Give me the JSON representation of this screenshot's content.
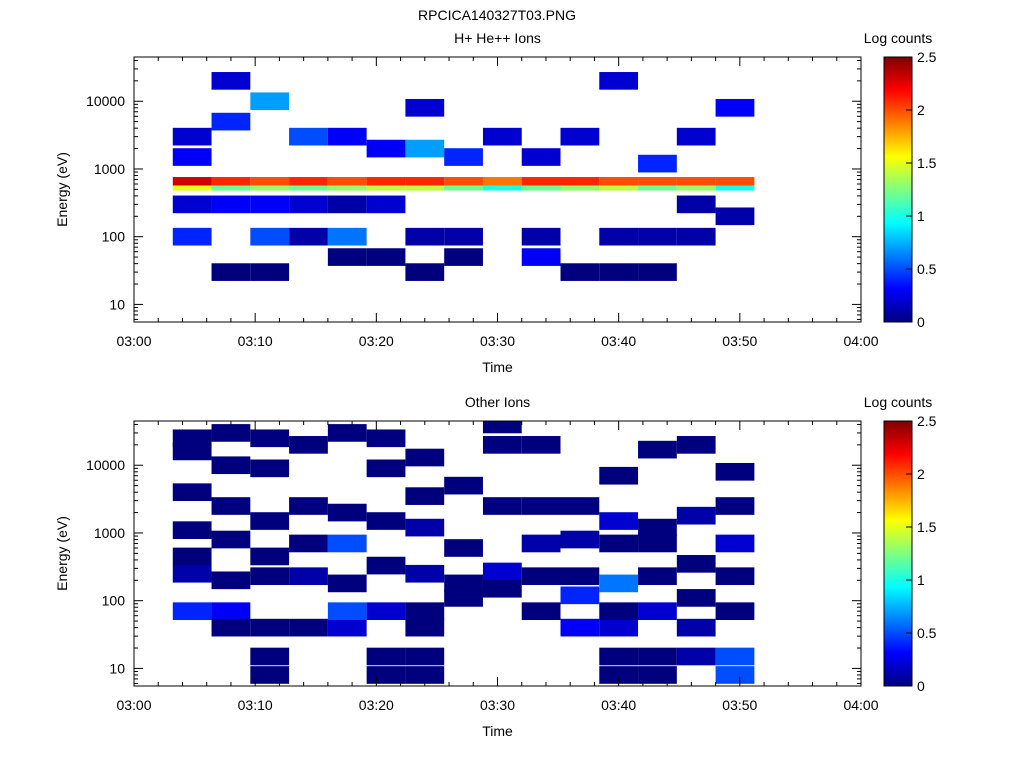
{
  "page_title": "RPCICA140327T03.PNG",
  "chart_data": [
    {
      "type": "heatmap",
      "title": "H+ He++ Ions",
      "xlabel": "Time",
      "ylabel": "Energy (eV)",
      "colorbar_label": "Log counts",
      "x_ticks": [
        "03:00",
        "03:10",
        "03:20",
        "03:30",
        "03:40",
        "03:50",
        "04:00"
      ],
      "y_ticks": [
        "10",
        "100",
        "1000",
        "10000"
      ],
      "colorbar_ticks": [
        "0",
        "0.5",
        "1",
        "1.5",
        "2",
        "2.5"
      ],
      "xlim_minutes": [
        0,
        60
      ],
      "ylim_eV": [
        5.5,
        45000
      ],
      "y_scale": "log",
      "zlim": [
        0,
        2.5
      ],
      "colormap": [
        "#00007f",
        "#0000ff",
        "#007fff",
        "#00ffff",
        "#7fff7f",
        "#ffff00",
        "#ff7f00",
        "#ff0000",
        "#7f0000"
      ],
      "time_bins_start_minutes": [
        3.2,
        6.4,
        9.6,
        12.8,
        16.0,
        19.2,
        22.4,
        25.6,
        28.8,
        32.0,
        35.2,
        38.4,
        41.6,
        44.8,
        48.0
      ],
      "time_bin_width_minutes": 3.2,
      "bands": [
        {
          "e_low": 570,
          "e_high": 760,
          "values": [
            2.3,
            2.1,
            2.0,
            2.1,
            2.0,
            2.1,
            2.1,
            2.0,
            1.9,
            2.1,
            2.1,
            2.0,
            2.0,
            2.0,
            2.0
          ]
        },
        {
          "e_low": 480,
          "e_high": 570,
          "values": [
            1.5,
            1.2,
            1.3,
            1.2,
            1.3,
            1.4,
            1.4,
            1.2,
            1.0,
            1.2,
            1.3,
            1.4,
            1.2,
            1.3,
            1.0
          ]
        }
      ],
      "cells": [
        [
          0,
          100,
          0.4
        ],
        [
          0,
          300,
          0.2
        ],
        [
          0,
          1500,
          0.3
        ],
        [
          0,
          3000,
          0.2
        ],
        [
          1,
          30,
          0.0
        ],
        [
          1,
          300,
          0.3
        ],
        [
          1,
          5000,
          0.4
        ],
        [
          1,
          20000,
          0.2
        ],
        [
          2,
          100,
          0.5
        ],
        [
          2,
          300,
          0.3
        ],
        [
          2,
          10000,
          0.7
        ],
        [
          2,
          30,
          0.0
        ],
        [
          3,
          100,
          0.1
        ],
        [
          3,
          300,
          0.2
        ],
        [
          3,
          3000,
          0.5
        ],
        [
          4,
          100,
          0.6
        ],
        [
          4,
          300,
          0.1
        ],
        [
          4,
          50,
          0.0
        ],
        [
          4,
          3000,
          0.3
        ],
        [
          5,
          50,
          0.0
        ],
        [
          5,
          300,
          0.2
        ],
        [
          5,
          2000,
          0.3
        ],
        [
          6,
          30,
          0.0
        ],
        [
          6,
          100,
          0.1
        ],
        [
          6,
          2000,
          0.7
        ],
        [
          6,
          8000,
          0.2
        ],
        [
          7,
          50,
          0.0
        ],
        [
          7,
          100,
          0.1
        ],
        [
          7,
          1500,
          0.4
        ],
        [
          8,
          3000,
          0.2
        ],
        [
          9,
          50,
          0.3
        ],
        [
          9,
          100,
          0.1
        ],
        [
          9,
          1500,
          0.2
        ],
        [
          10,
          30,
          0.0
        ],
        [
          10,
          3000,
          0.2
        ],
        [
          11,
          30,
          0.0
        ],
        [
          11,
          100,
          0.1
        ],
        [
          11,
          20000,
          0.2
        ],
        [
          12,
          30,
          0.0
        ],
        [
          12,
          100,
          0.1
        ],
        [
          12,
          1200,
          0.4
        ],
        [
          13,
          100,
          0.1
        ],
        [
          13,
          300,
          0.1
        ],
        [
          13,
          3000,
          0.2
        ],
        [
          14,
          200,
          0.1
        ],
        [
          14,
          8000,
          0.3
        ]
      ]
    },
    {
      "type": "heatmap",
      "title": "Other Ions",
      "xlabel": "Time",
      "ylabel": "Energy (eV)",
      "colorbar_label": "Log counts",
      "x_ticks": [
        "03:00",
        "03:10",
        "03:20",
        "03:30",
        "03:40",
        "03:50",
        "04:00"
      ],
      "y_ticks": [
        "10",
        "100",
        "1000",
        "10000"
      ],
      "colorbar_ticks": [
        "0",
        "0.5",
        "1",
        "1.5",
        "2",
        "2.5"
      ],
      "xlim_minutes": [
        0,
        60
      ],
      "ylim_eV": [
        5.5,
        45000
      ],
      "y_scale": "log",
      "zlim": [
        0,
        2.5
      ],
      "colormap": [
        "#00007f",
        "#0000ff",
        "#007fff",
        "#00ffff",
        "#7fff7f",
        "#ffff00",
        "#ff7f00",
        "#ff0000",
        "#7f0000"
      ],
      "time_bins_start_minutes": [
        3.2,
        6.4,
        9.6,
        12.8,
        16.0,
        19.2,
        22.4,
        25.6,
        28.8,
        32.0,
        35.2,
        38.4,
        41.6,
        44.8,
        48.0
      ],
      "time_bin_width_minutes": 3.2,
      "bands": [],
      "cells": [
        [
          0,
          70,
          0.4
        ],
        [
          0,
          250,
          0.1
        ],
        [
          0,
          450,
          0.0
        ],
        [
          0,
          1100,
          0.0
        ],
        [
          0,
          4000,
          0.0
        ],
        [
          0,
          16000,
          0.0
        ],
        [
          0,
          25000,
          0.0
        ],
        [
          1,
          70,
          0.3
        ],
        [
          1,
          40,
          0.0
        ],
        [
          1,
          200,
          0.0
        ],
        [
          1,
          800,
          0.0
        ],
        [
          1,
          2500,
          0.0
        ],
        [
          1,
          10000,
          0.0
        ],
        [
          1,
          30000,
          0.0
        ],
        [
          2,
          40,
          0.0
        ],
        [
          2,
          15,
          0.0
        ],
        [
          2,
          8,
          0.0
        ],
        [
          2,
          230,
          0.0
        ],
        [
          2,
          450,
          0.0
        ],
        [
          2,
          1500,
          0.0
        ],
        [
          2,
          9000,
          0.0
        ],
        [
          2,
          25000,
          0.0
        ],
        [
          3,
          40,
          0.0
        ],
        [
          3,
          230,
          0.1
        ],
        [
          3,
          700,
          0.0
        ],
        [
          3,
          2500,
          0.0
        ],
        [
          3,
          20000,
          0.0
        ],
        [
          4,
          40,
          0.2
        ],
        [
          4,
          70,
          0.5
        ],
        [
          4,
          180,
          0.0
        ],
        [
          4,
          700,
          0.5
        ],
        [
          4,
          2000,
          0.0
        ],
        [
          4,
          30000,
          0.0
        ],
        [
          5,
          15,
          0.0
        ],
        [
          5,
          8,
          0.0
        ],
        [
          5,
          70,
          0.2
        ],
        [
          5,
          330,
          0.0
        ],
        [
          5,
          1500,
          0.0
        ],
        [
          5,
          9000,
          0.0
        ],
        [
          5,
          25000,
          0.0
        ],
        [
          6,
          15,
          0.0
        ],
        [
          6,
          8,
          0.0
        ],
        [
          6,
          40,
          0.0
        ],
        [
          6,
          70,
          0.0
        ],
        [
          6,
          250,
          0.1
        ],
        [
          6,
          1200,
          0.1
        ],
        [
          6,
          3500,
          0.0
        ],
        [
          6,
          13000,
          0.0
        ],
        [
          7,
          180,
          0.0
        ],
        [
          7,
          110,
          0.0
        ],
        [
          7,
          600,
          0.0
        ],
        [
          7,
          5000,
          0.0
        ],
        [
          8,
          270,
          0.2
        ],
        [
          8,
          150,
          0.0
        ],
        [
          8,
          2500,
          0.0
        ],
        [
          8,
          20000,
          0.0
        ],
        [
          8,
          40000,
          0.0
        ],
        [
          9,
          70,
          0.0
        ],
        [
          9,
          230,
          0.0
        ],
        [
          9,
          700,
          0.1
        ],
        [
          9,
          2500,
          0.0
        ],
        [
          9,
          20000,
          0.0
        ],
        [
          10,
          40,
          0.3
        ],
        [
          10,
          120,
          0.4
        ],
        [
          10,
          230,
          0.0
        ],
        [
          10,
          800,
          0.1
        ],
        [
          10,
          2500,
          0.0
        ],
        [
          11,
          8,
          0.0
        ],
        [
          11,
          15,
          0.0
        ],
        [
          11,
          40,
          0.2
        ],
        [
          11,
          70,
          0.0
        ],
        [
          11,
          180,
          0.6
        ],
        [
          11,
          700,
          0.0
        ],
        [
          11,
          1500,
          0.2
        ],
        [
          11,
          7000,
          0.0
        ],
        [
          12,
          8,
          0.0
        ],
        [
          12,
          15,
          0.0
        ],
        [
          12,
          70,
          0.2
        ],
        [
          12,
          230,
          0.0
        ],
        [
          12,
          700,
          0.0
        ],
        [
          12,
          1200,
          0.0
        ],
        [
          12,
          17000,
          0.0
        ],
        [
          13,
          15,
          0.1
        ],
        [
          13,
          40,
          0.1
        ],
        [
          13,
          110,
          0.0
        ],
        [
          13,
          350,
          0.0
        ],
        [
          13,
          1800,
          0.1
        ],
        [
          13,
          20000,
          0.0
        ],
        [
          14,
          8,
          0.5
        ],
        [
          14,
          15,
          0.5
        ],
        [
          14,
          70,
          0.0
        ],
        [
          14,
          230,
          0.0
        ],
        [
          14,
          700,
          0.2
        ],
        [
          14,
          2500,
          0.0
        ],
        [
          14,
          8000,
          0.0
        ]
      ]
    }
  ]
}
